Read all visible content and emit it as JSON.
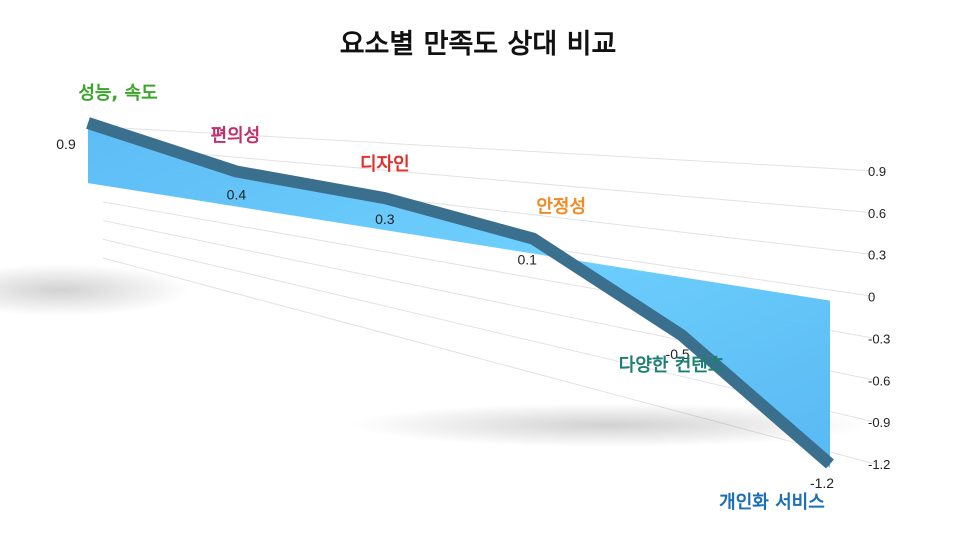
{
  "chart_data": {
    "type": "area",
    "title": "요소별 만족도 상대 비교",
    "categories": [
      "성능, 속도",
      "편의성",
      "디자인",
      "안정성",
      "다양한 컨텐츠",
      "개인화 서비스"
    ],
    "values": [
      0.9,
      0.4,
      0.3,
      0.1,
      -0.5,
      -1.2
    ],
    "value_labels": [
      "0.9",
      "0.4",
      "0.3",
      "0.1",
      "-0.5",
      "-1.2"
    ],
    "category_colors": [
      "#3aa52a",
      "#c0306a",
      "#e0302a",
      "#f08a24",
      "#1f7f74",
      "#1a6fb8"
    ],
    "yticks": [
      "0.9",
      "0.6",
      "0.3",
      "0",
      "-0.3",
      "-0.6",
      "-0.9",
      "-1.2"
    ],
    "ylim": [
      -1.2,
      0.9
    ],
    "grid": true,
    "legend": "none",
    "colors": {
      "area": "#5ec4ff",
      "line": "#3b6f8e",
      "grid": "#e2e2e2"
    }
  }
}
